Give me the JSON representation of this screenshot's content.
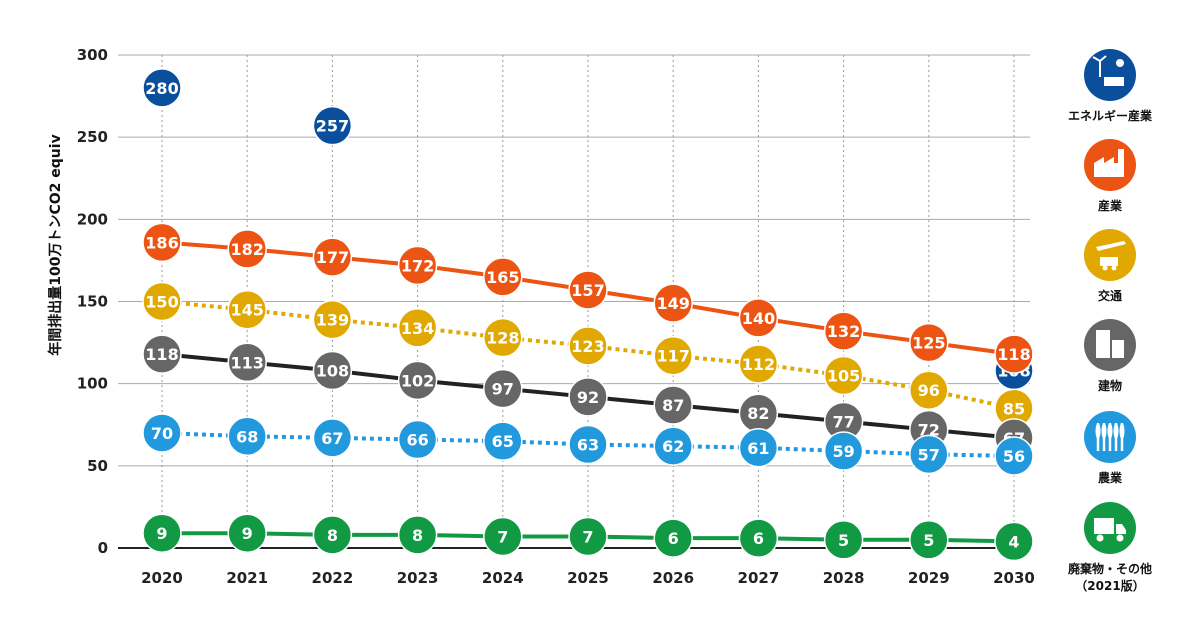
{
  "chart_data": {
    "type": "line",
    "ylabel": "年間排出量100万トンCO2 equiv",
    "ylim": [
      0,
      300
    ],
    "yticks": [
      "0",
      "50",
      "100",
      "150",
      "200",
      "250",
      "300"
    ],
    "categories": [
      "2020",
      "2021",
      "2022",
      "2023",
      "2024",
      "2025",
      "2026",
      "2027",
      "2028",
      "2029",
      "2030"
    ],
    "grid": true,
    "legend_position": "right",
    "series": [
      {
        "name": "エネルギー産業",
        "color": "#0b4f9c",
        "line": "none",
        "icon": "wind-solar-icon",
        "points": [
          {
            "x": "2020",
            "y": 280
          },
          {
            "x": "2022",
            "y": 257
          },
          {
            "x": "2030",
            "y": 108
          }
        ]
      },
      {
        "name": "産業",
        "color": "#ec5414",
        "line": "solid",
        "icon": "factory-icon",
        "values": [
          186,
          182,
          177,
          172,
          165,
          157,
          149,
          140,
          132,
          125,
          118
        ]
      },
      {
        "name": "交通",
        "color": "#e0a800",
        "line": "dotted",
        "icon": "plane-truck-icon",
        "values": [
          150,
          145,
          139,
          134,
          128,
          123,
          117,
          112,
          105,
          96,
          85
        ]
      },
      {
        "name": "建物",
        "color": "#666666",
        "line": "solid",
        "lineColor": "#222222",
        "icon": "building-icon",
        "values": [
          118,
          113,
          108,
          102,
          97,
          92,
          87,
          82,
          77,
          72,
          67
        ]
      },
      {
        "name": "農業",
        "color": "#2299dd",
        "line": "dotted",
        "icon": "wheat-icon",
        "values": [
          70,
          68,
          67,
          66,
          65,
          63,
          62,
          61,
          59,
          57,
          56
        ]
      },
      {
        "name": "廃棄物・その他\n（2021版）",
        "color": "#119944",
        "line": "solid",
        "icon": "dump-truck-icon",
        "values": [
          9,
          9,
          8,
          8,
          7,
          7,
          6,
          6,
          5,
          5,
          4
        ]
      }
    ]
  }
}
